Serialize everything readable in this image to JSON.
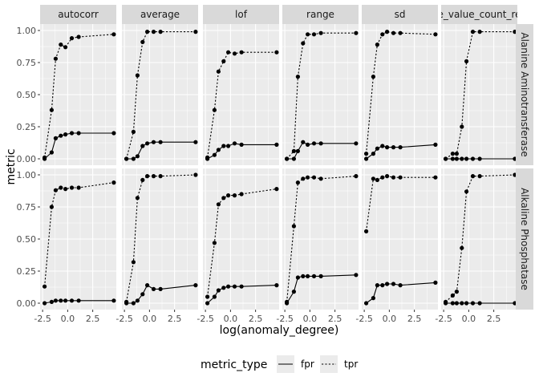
{
  "chart_data": {
    "type": "line",
    "layout": "facet_grid",
    "xlabel": "log(anomaly_degree)",
    "ylabel": "metric",
    "x_ticks": [
      -2.5,
      0.0,
      2.5
    ],
    "x_tick_labels": [
      "-2.5",
      "0.0",
      "2.5"
    ],
    "y_ticks": [
      0,
      0.25,
      0.5,
      0.75,
      1.0
    ],
    "y_tick_labels": [
      "0.00",
      "0.25",
      "0.50",
      "0.75",
      "1.00"
    ],
    "xlim": [
      -2.75,
      4.85
    ],
    "ylim": [
      -0.05,
      1.05
    ],
    "grid": true,
    "legend": {
      "title": "metric_type",
      "position": "bottom",
      "entries": [
        {
          "label": "fpr",
          "linestyle": "solid"
        },
        {
          "label": "tpr",
          "linestyle": "dotted"
        }
      ]
    },
    "x": [
      -2.3,
      -1.6,
      -1.2,
      -0.69,
      -0.22,
      0.41,
      1.1,
      4.6
    ],
    "columns": [
      "autocorr",
      "average",
      "lof",
      "range",
      "sd",
      "e_value_count_re"
    ],
    "rows": [
      "Alanine Aminotransferase",
      "Alkaline Phosphatase"
    ],
    "panels": [
      {
        "row": 0,
        "col": 0,
        "fpr": [
          0.0,
          0.05,
          0.16,
          0.18,
          0.19,
          0.2,
          0.2,
          0.2
        ],
        "tpr": [
          0.01,
          0.38,
          0.78,
          0.89,
          0.87,
          0.94,
          0.95,
          0.97
        ]
      },
      {
        "row": 0,
        "col": 1,
        "fpr": [
          0.0,
          0.0,
          0.02,
          0.1,
          0.12,
          0.13,
          0.13,
          0.13
        ],
        "tpr": [
          0.0,
          0.21,
          0.65,
          0.91,
          0.99,
          0.99,
          0.99,
          0.99
        ]
      },
      {
        "row": 0,
        "col": 2,
        "fpr": [
          0.0,
          0.03,
          0.07,
          0.1,
          0.1,
          0.12,
          0.11,
          0.11
        ],
        "tpr": [
          0.01,
          0.38,
          0.68,
          0.76,
          0.83,
          0.82,
          0.83,
          0.83
        ]
      },
      {
        "row": 0,
        "col": 3,
        "fpr": [
          0.0,
          0.0,
          0.06,
          0.13,
          0.11,
          0.12,
          0.12,
          0.12
        ],
        "tpr": [
          0.0,
          0.06,
          0.64,
          0.9,
          0.97,
          0.97,
          0.98,
          0.98
        ]
      },
      {
        "row": 0,
        "col": 4,
        "fpr": [
          0.0,
          0.04,
          0.08,
          0.1,
          0.09,
          0.09,
          0.09,
          0.11
        ],
        "tpr": [
          0.04,
          0.64,
          0.89,
          0.97,
          0.99,
          0.98,
          0.98,
          0.97
        ]
      },
      {
        "row": 0,
        "col": 5,
        "fpr": [
          0.0,
          0.0,
          0.0,
          0.0,
          0.0,
          0.0,
          0.0,
          0.0
        ],
        "tpr": [
          0.0,
          0.04,
          0.04,
          0.25,
          0.76,
          0.99,
          0.99,
          0.99
        ]
      },
      {
        "row": 1,
        "col": 0,
        "fpr": [
          0.0,
          0.01,
          0.02,
          0.02,
          0.02,
          0.02,
          0.02,
          0.02
        ],
        "tpr": [
          0.13,
          0.75,
          0.88,
          0.9,
          0.89,
          0.9,
          0.9,
          0.94
        ]
      },
      {
        "row": 1,
        "col": 1,
        "fpr": [
          0.0,
          0.0,
          0.02,
          0.07,
          0.14,
          0.11,
          0.11,
          0.14
        ],
        "tpr": [
          0.01,
          0.32,
          0.82,
          0.96,
          0.99,
          0.99,
          0.99,
          1.0
        ]
      },
      {
        "row": 1,
        "col": 2,
        "fpr": [
          0.0,
          0.05,
          0.1,
          0.12,
          0.13,
          0.13,
          0.13,
          0.14
        ],
        "tpr": [
          0.05,
          0.47,
          0.77,
          0.82,
          0.84,
          0.84,
          0.85,
          0.89
        ]
      },
      {
        "row": 1,
        "col": 3,
        "fpr": [
          0.0,
          0.09,
          0.2,
          0.21,
          0.21,
          0.21,
          0.21,
          0.22
        ],
        "tpr": [
          0.01,
          0.6,
          0.94,
          0.97,
          0.98,
          0.98,
          0.97,
          0.99
        ]
      },
      {
        "row": 1,
        "col": 4,
        "fpr": [
          0.0,
          0.04,
          0.14,
          0.14,
          0.15,
          0.15,
          0.14,
          0.16
        ],
        "tpr": [
          0.56,
          0.97,
          0.96,
          0.98,
          0.99,
          0.98,
          0.98,
          0.98
        ]
      },
      {
        "row": 1,
        "col": 5,
        "fpr": [
          0.0,
          0.0,
          0.0,
          0.0,
          0.0,
          0.0,
          0.0,
          0.0
        ],
        "tpr": [
          0.01,
          0.06,
          0.09,
          0.43,
          0.87,
          0.99,
          0.99,
          1.0
        ]
      }
    ]
  }
}
